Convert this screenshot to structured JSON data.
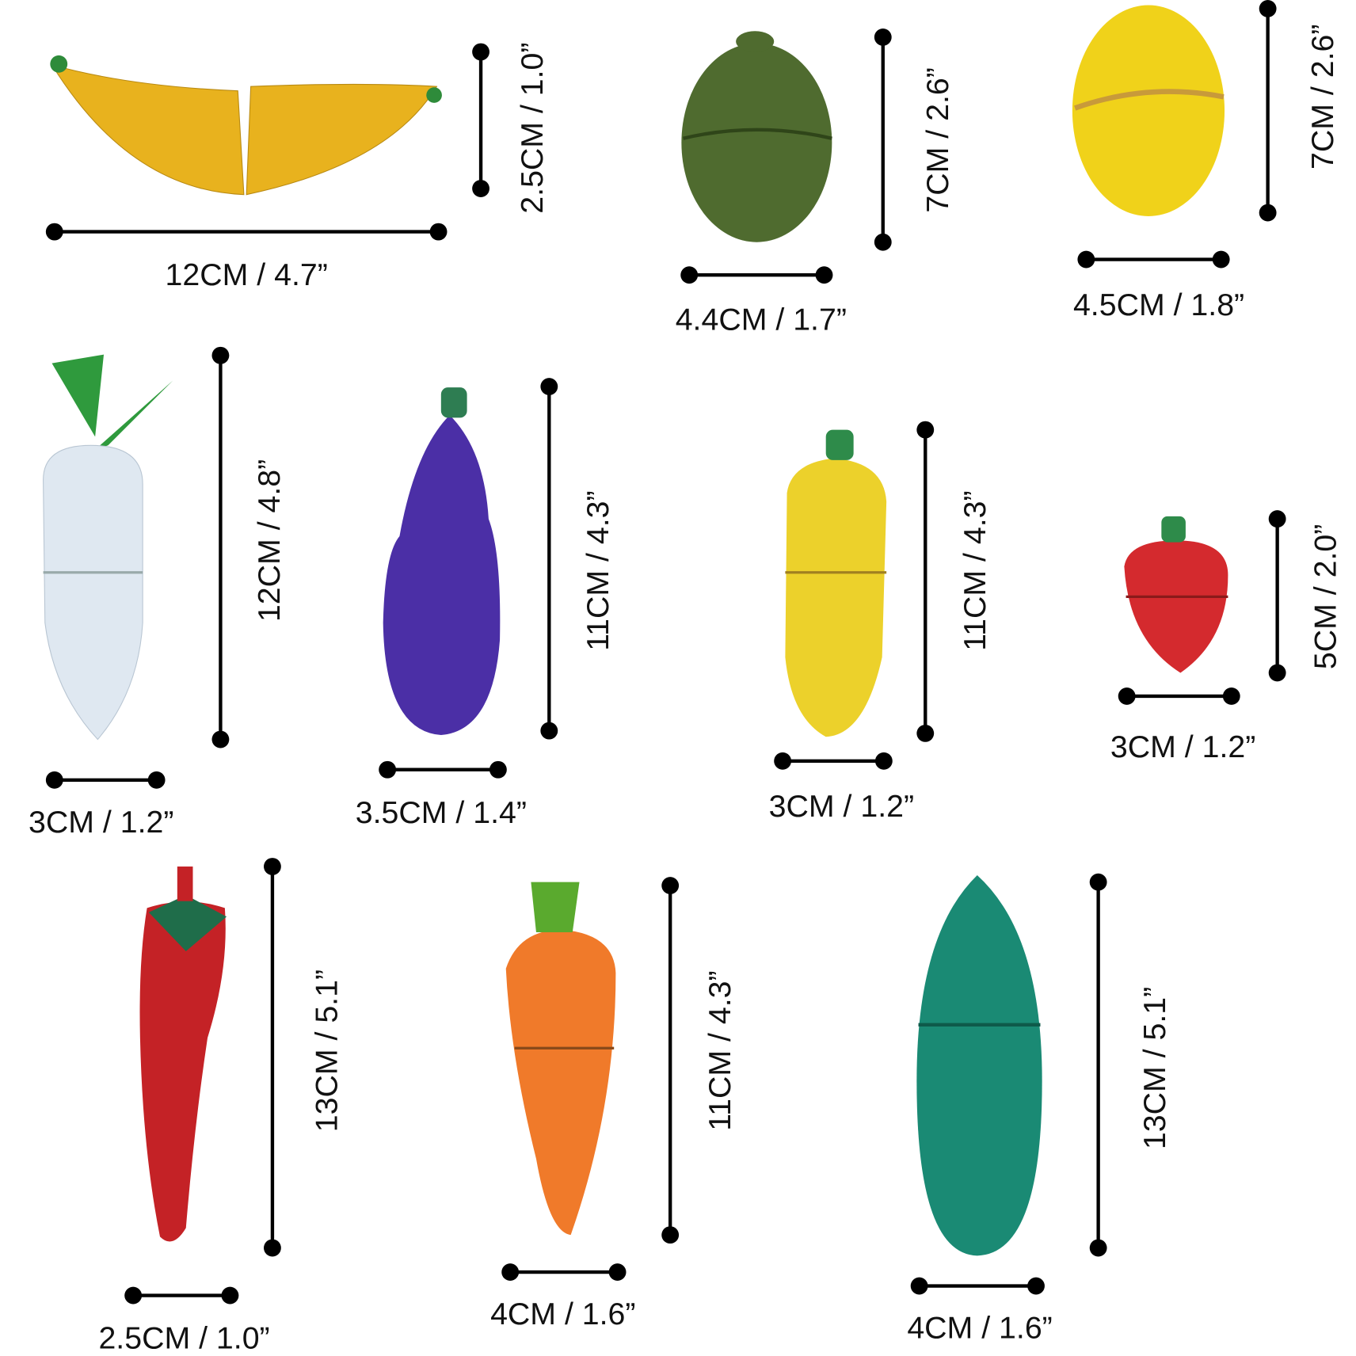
{
  "items": [
    {
      "width": "12CM / 4.7”",
      "height": "2.5CM / 1.0”"
    },
    {
      "width": "4.4CM / 1.7”",
      "height": "7CM / 2.6”"
    },
    {
      "width": "4.5CM / 1.8”",
      "height": "7CM / 2.6”"
    },
    {
      "width": "3CM / 1.2”",
      "height": "12CM / 4.8”"
    },
    {
      "width": "3.5CM / 1.4”",
      "height": "11CM / 4.3”"
    },
    {
      "width": "3CM / 1.2”",
      "height": "11CM / 4.3”"
    },
    {
      "width": "3CM / 1.2”",
      "height": "5CM / 2.0”"
    },
    {
      "width": "2.5CM / 1.0”",
      "height": "13CM / 5.1”"
    },
    {
      "width": "4CM / 1.6”",
      "height": "11CM / 4.3”"
    },
    {
      "width": "4CM / 1.6”",
      "height": "13CM / 5.1”"
    }
  ]
}
